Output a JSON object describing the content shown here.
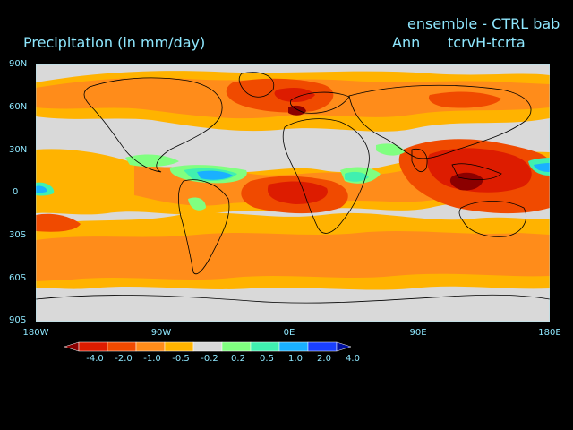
{
  "header": {
    "title": "Precipitation (in mm/day)",
    "top_right_line1": "ensemble - CTRL bab",
    "top_right_line2_left": "Ann",
    "top_right_line2_right": "tcrvH-tcrta"
  },
  "axes": {
    "y_ticks": [
      "90N",
      "60N",
      "30N",
      "0",
      "30S",
      "60S",
      "90S"
    ],
    "x_ticks": [
      "180W",
      "90W",
      "0E",
      "90E",
      "180E"
    ]
  },
  "colorbar": {
    "ticks": [
      "-4.0",
      "-2.0",
      "-1.0",
      "-0.5",
      "-0.2",
      "0.2",
      "0.5",
      "1.0",
      "2.0",
      "4.0"
    ],
    "colors": [
      "#8b0000",
      "#dd1c00",
      "#f04a00",
      "#ff8c1a",
      "#ffb300",
      "#d9d9d9",
      "#80ff80",
      "#40f0b0",
      "#1ab0ff",
      "#1a40ff",
      "#0010a0"
    ]
  },
  "map_colors": {
    "background": "#d9d9d9",
    "orange_light": "#ffb300",
    "orange": "#ff8c1a",
    "red_orange": "#f04a00",
    "red": "#dd1c00",
    "dark_red": "#8b0000",
    "green": "#80ff80",
    "teal": "#40f0b0",
    "blue": "#1ab0ff",
    "coast": "#000000"
  }
}
